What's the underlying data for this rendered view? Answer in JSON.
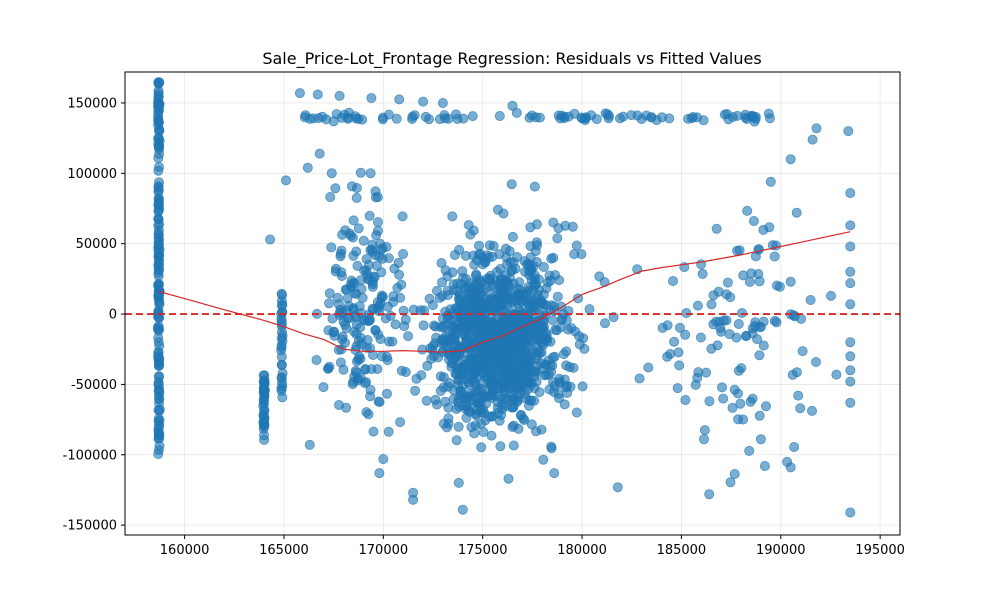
{
  "chart_data": {
    "type": "scatter",
    "title": "Sale_Price-Lot_Frontage Regression: Residuals vs Fitted Values",
    "xlabel": "",
    "ylabel": "",
    "xlim": [
      157000,
      196000
    ],
    "ylim": [
      -157000,
      172000
    ],
    "x_ticks": [
      160000,
      165000,
      170000,
      175000,
      180000,
      185000,
      190000,
      195000
    ],
    "y_ticks": [
      -150000,
      -100000,
      -50000,
      0,
      50000,
      100000,
      150000
    ],
    "grid": true,
    "point_color": "#1f77b4",
    "reference_line": {
      "y": 0,
      "color": "#d62728",
      "style": "dashed"
    },
    "smoother": {
      "color": "#d62728",
      "points": [
        [
          158700,
          16000
        ],
        [
          160000,
          11000
        ],
        [
          162000,
          3000
        ],
        [
          164000,
          -4500
        ],
        [
          165000,
          -9000
        ],
        [
          166000,
          -14000
        ],
        [
          167000,
          -18000
        ],
        [
          168000,
          -25000
        ],
        [
          169000,
          -26500
        ],
        [
          170000,
          -26500
        ],
        [
          171000,
          -26000
        ],
        [
          172000,
          -26500
        ],
        [
          173000,
          -27000
        ],
        [
          174000,
          -26000
        ],
        [
          175000,
          -20000
        ],
        [
          176000,
          -15500
        ],
        [
          177000,
          -9000
        ],
        [
          178000,
          -3000
        ],
        [
          179000,
          5000
        ],
        [
          180000,
          14000
        ],
        [
          181000,
          19000
        ],
        [
          182000,
          25000
        ],
        [
          183000,
          30500
        ],
        [
          184000,
          33000
        ],
        [
          185000,
          35000
        ],
        [
          186000,
          37000
        ],
        [
          187000,
          39500
        ],
        [
          188000,
          42000
        ],
        [
          189000,
          45000
        ],
        [
          190000,
          48000
        ],
        [
          191000,
          51000
        ],
        [
          192000,
          54000
        ],
        [
          193000,
          57000
        ],
        [
          193500,
          58500
        ]
      ]
    },
    "columns": [
      {
        "x": 158700,
        "y_min": -100000,
        "y_max": 165000,
        "n": 160
      },
      {
        "x": 164000,
        "y_min": -90000,
        "y_max": -43000,
        "n": 40
      },
      {
        "x": 164900,
        "y_min": -60000,
        "y_max": 15000,
        "n": 30
      }
    ],
    "clusters": [
      {
        "x_min": 166000,
        "x_max": 172000,
        "y_min": -115000,
        "y_max": 125000,
        "n": 200
      },
      {
        "x_min": 171000,
        "x_max": 180000,
        "y_min": -100000,
        "y_max": 60000,
        "n": 1000
      },
      {
        "x_min": 172000,
        "x_max": 182000,
        "y_min": -130000,
        "y_max": 110000,
        "n": 220
      },
      {
        "x_min": 182000,
        "x_max": 194000,
        "y_min": -140000,
        "y_max": 100000,
        "n": 110
      }
    ],
    "ceiling_band": {
      "x_min": 166000,
      "x_max": 189500,
      "y": 140000,
      "n": 90
    },
    "outliers": [
      [
        164300,
        53000
      ],
      [
        165100,
        95000
      ],
      [
        166200,
        104000
      ],
      [
        166800,
        114000
      ],
      [
        167500,
        137000
      ],
      [
        165800,
        157000
      ],
      [
        166700,
        156000
      ],
      [
        167800,
        155000
      ],
      [
        169400,
        153500
      ],
      [
        170800,
        152500
      ],
      [
        172000,
        151000
      ],
      [
        173000,
        150000
      ],
      [
        176500,
        148000
      ],
      [
        191800,
        132000
      ],
      [
        193400,
        130000
      ],
      [
        190500,
        110000
      ],
      [
        191600,
        124000
      ],
      [
        193500,
        86000
      ],
      [
        193500,
        63000
      ],
      [
        193500,
        48000
      ],
      [
        193500,
        30000
      ],
      [
        193500,
        22000
      ],
      [
        193500,
        7000
      ],
      [
        193500,
        -20000
      ],
      [
        193500,
        -30000
      ],
      [
        193500,
        -40000
      ],
      [
        193500,
        -48000
      ],
      [
        193500,
        -63000
      ],
      [
        193500,
        -141000
      ],
      [
        189200,
        -108000
      ],
      [
        190500,
        -109000
      ],
      [
        189000,
        -89000
      ],
      [
        186400,
        -128000
      ],
      [
        181800,
        -123000
      ],
      [
        174000,
        -139000
      ],
      [
        173800,
        -120000
      ],
      [
        171500,
        -132000
      ],
      [
        171500,
        -127000
      ],
      [
        169800,
        -113000
      ],
      [
        166300,
        -93000
      ],
      [
        170000,
        -103000
      ],
      [
        176300,
        -117000
      ],
      [
        178600,
        -113000
      ],
      [
        191500,
        10000
      ],
      [
        190500,
        23000
      ],
      [
        188900,
        46000
      ],
      [
        189600,
        49000
      ],
      [
        189500,
        94000
      ],
      [
        190800,
        72000
      ],
      [
        192800,
        -43000
      ]
    ]
  }
}
